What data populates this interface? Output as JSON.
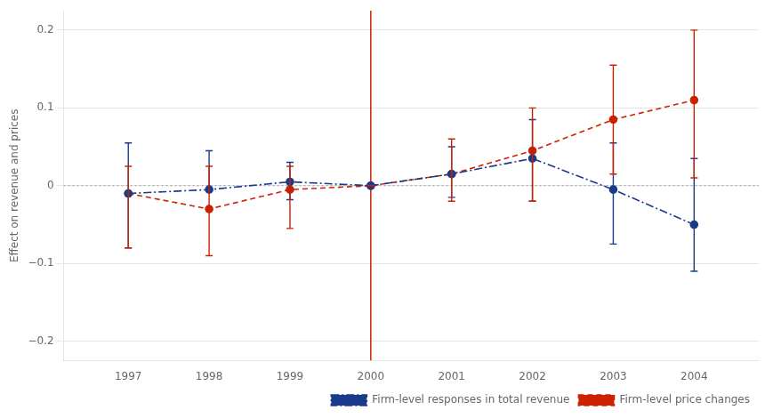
{
  "chart_data": {
    "type": "line",
    "x": [
      1997,
      1998,
      1999,
      2000,
      2001,
      2002,
      2003,
      2004
    ],
    "xlim": [
      1996.2,
      2004.8
    ],
    "xticks": [
      1997,
      1998,
      1999,
      2000,
      2001,
      2002,
      2003,
      2004
    ],
    "ylim": [
      -0.225,
      0.225
    ],
    "yticks": [
      {
        "value": -0.2,
        "label": "−0.2"
      },
      {
        "value": -0.1,
        "label": "−0.1"
      },
      0,
      0.1,
      0.2
    ],
    "ylabel": "Effect on revenue and prices",
    "grid": "y",
    "legend": "lower right",
    "series": [
      {
        "name": "Firm-level responses in total revenue",
        "color": "#1a3a8a",
        "marker": "circle",
        "line_style": "dashdot",
        "values": [
          -0.01,
          -0.005,
          0.005,
          0.0,
          0.015,
          0.035,
          -0.005,
          -0.05
        ],
        "lower": [
          -0.08,
          -0.005,
          -0.018,
          0.0,
          -0.015,
          -0.02,
          -0.075,
          -0.11
        ],
        "upper": [
          0.055,
          0.045,
          0.03,
          0.0,
          0.05,
          0.085,
          0.055,
          0.035
        ]
      },
      {
        "name": "Firm-level price changes",
        "color": "#cc2200",
        "marker": "circle",
        "line_style": "dashed",
        "values": [
          -0.01,
          -0.03,
          -0.005,
          0.0,
          0.015,
          0.045,
          0.085,
          0.11
        ],
        "lower": [
          -0.08,
          -0.09,
          -0.055,
          0.0,
          -0.02,
          -0.02,
          0.015,
          0.01
        ],
        "upper": [
          0.025,
          0.025,
          0.025,
          0.0,
          0.06,
          0.1,
          0.155,
          0.2
        ]
      }
    ],
    "reference_lines": [
      {
        "axis": "x",
        "value": 2000,
        "color": "#cc2200",
        "line_style": "solid"
      },
      {
        "axis": "y",
        "value": 0,
        "color": "#999999",
        "line_style": "dotted"
      }
    ]
  }
}
